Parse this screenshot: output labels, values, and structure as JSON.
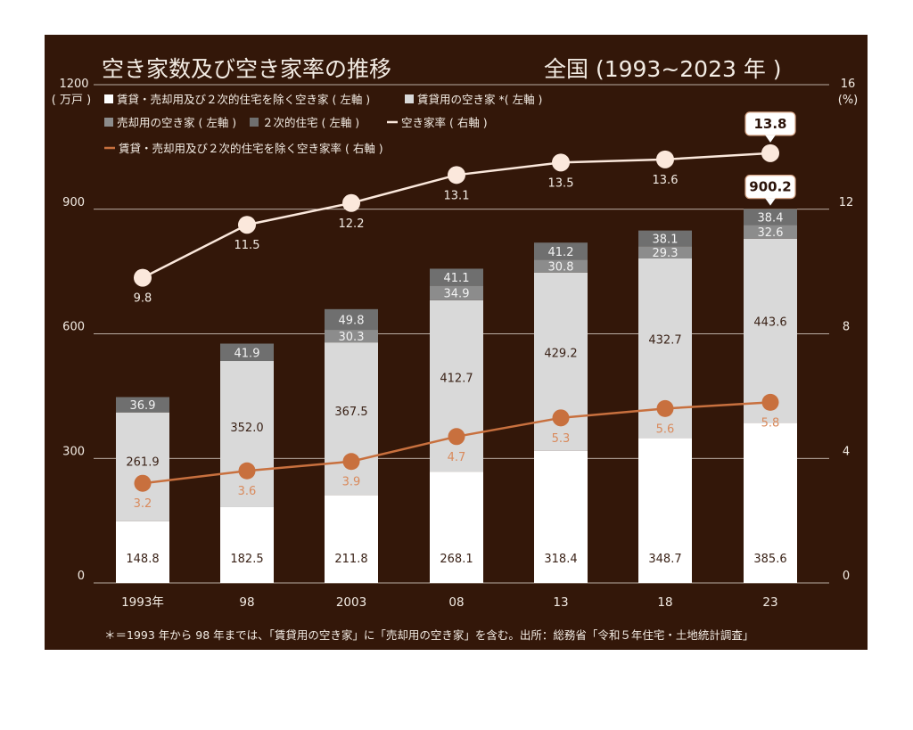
{
  "chart_data": {
    "type": "bar",
    "title": "空き家数及び空き家率の推移",
    "subtitle": "全国 (1993~2023 年 )",
    "y_left": {
      "unit_line1": "1200",
      "unit_line2": "( 万戸 )",
      "ylim": [
        0,
        1200
      ],
      "ticks": [
        0,
        300,
        600,
        900
      ]
    },
    "y_right": {
      "unit_line1": "16",
      "unit_line2": "(%)",
      "ylim": [
        0,
        16
      ],
      "ticks": [
        0,
        4,
        8,
        12
      ]
    },
    "categories": [
      "1993年",
      "98",
      "2003",
      "08",
      "13",
      "18",
      "23"
    ],
    "stacked_series": [
      {
        "name": "賃貸・売却用及び２次的住宅を除く空き家 ( 左軸 )",
        "color": "#ffffff",
        "label_color": "#3a2217",
        "values": [
          "148.8",
          "182.5",
          "211.8",
          "268.1",
          "318.4",
          "348.7",
          "385.6"
        ]
      },
      {
        "name": "賃貸用の空き家 *( 左軸 )",
        "color": "#d9d9d9",
        "label_color": "#3a2217",
        "values": [
          "261.9",
          "352.0",
          "367.5",
          "412.7",
          "429.2",
          "432.7",
          "443.6"
        ]
      },
      {
        "name": "売却用の空き家 ( 左軸 )",
        "color": "#8c8c8c",
        "label_color": "#f3f3f3",
        "values": [
          null,
          null,
          "30.3",
          "34.9",
          "30.8",
          "29.3",
          "32.6"
        ]
      },
      {
        "name": "２次的住宅 ( 左軸 )",
        "color": "#6f6f6f",
        "label_color": "#f3f3f3",
        "values": [
          "36.9",
          "41.9",
          "49.8",
          "41.1",
          "41.2",
          "38.1",
          "38.4"
        ]
      }
    ],
    "line_series": [
      {
        "name": "空き家率 ( 右軸 )",
        "color": "#fbe8dc",
        "label_color": "#f3ece4",
        "values": [
          "9.8",
          "11.5",
          "12.2",
          "13.1",
          "13.5",
          "13.6",
          "13.8"
        ]
      },
      {
        "name": "賃貸・売却用及び２次的住宅を除く空き家率 ( 右軸 )",
        "color": "#c8703e",
        "label_color": "#d98a5c",
        "values": [
          "3.2",
          "3.6",
          "3.9",
          "4.7",
          "5.3",
          "5.6",
          "5.8"
        ]
      }
    ],
    "callouts": {
      "total_last": "900.2",
      "rate_last": "13.8"
    },
    "footnote": "＊＝1993 年から 98 年までは、「賃貸用の空き家」に「売却用の空き家」を含む。出所：総務省「令和５年住宅・土地統計調査」",
    "colors": {
      "background": "#331709",
      "gridline": "#e8e0d8",
      "callout_border": "#d9a88a"
    }
  }
}
